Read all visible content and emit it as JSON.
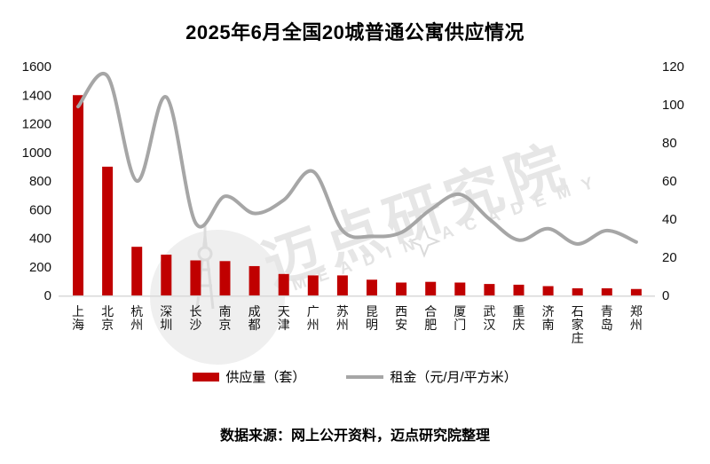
{
  "title": "2025年6月全国20城普通公寓供应情况",
  "source_note": "数据来源：网上公开资料，迈点研究院整理",
  "watermark": {
    "brand_text": "迈点研究院",
    "brand_subtext": "MEADIN ACADEMY"
  },
  "legend": {
    "supply_label": "供应量（套）",
    "rent_label": "租金（元/月/平方米）"
  },
  "colors": {
    "bar": "#C00000",
    "line": "#A6A6A6",
    "baseline": "#D9D9D9",
    "axis_text": "#111111",
    "watermark": "#E6E6E6"
  },
  "chart_data": {
    "type": "bar",
    "subtype": "combo-bar-line-dual-axis",
    "title": "2025年6月全国20城普通公寓供应情况",
    "categories": [
      "上海",
      "北京",
      "杭州",
      "深圳",
      "长沙",
      "南京",
      "成都",
      "天津",
      "广州",
      "苏州",
      "昆明",
      "西安",
      "合肥",
      "厦门",
      "武汉",
      "重庆",
      "济南",
      "石家庄",
      "青岛",
      "郑州"
    ],
    "series": [
      {
        "name": "供应量（套）",
        "type": "bar",
        "axis": "left",
        "color": "#C00000",
        "values": [
          1400,
          900,
          340,
          285,
          245,
          240,
          205,
          150,
          140,
          140,
          110,
          90,
          95,
          90,
          80,
          75,
          65,
          50,
          50,
          45
        ]
      },
      {
        "name": "租金（元/月/平方米）",
        "type": "line",
        "axis": "right",
        "color": "#A6A6A6",
        "values": [
          99,
          115,
          60,
          104,
          38,
          52,
          43,
          50,
          65,
          34,
          31,
          33,
          45,
          53,
          40,
          29,
          35,
          27,
          34,
          28
        ]
      }
    ],
    "left_axis": {
      "min": 0,
      "max": 1600,
      "step": 200,
      "ticks": [
        0,
        200,
        400,
        600,
        800,
        1000,
        1200,
        1400,
        1600
      ]
    },
    "right_axis": {
      "min": 0,
      "max": 120,
      "step": 20,
      "ticks": [
        0,
        20,
        40,
        60,
        80,
        100,
        120
      ]
    },
    "grid": false,
    "legend_position": "bottom",
    "x_labels_orientation": "vertical"
  }
}
